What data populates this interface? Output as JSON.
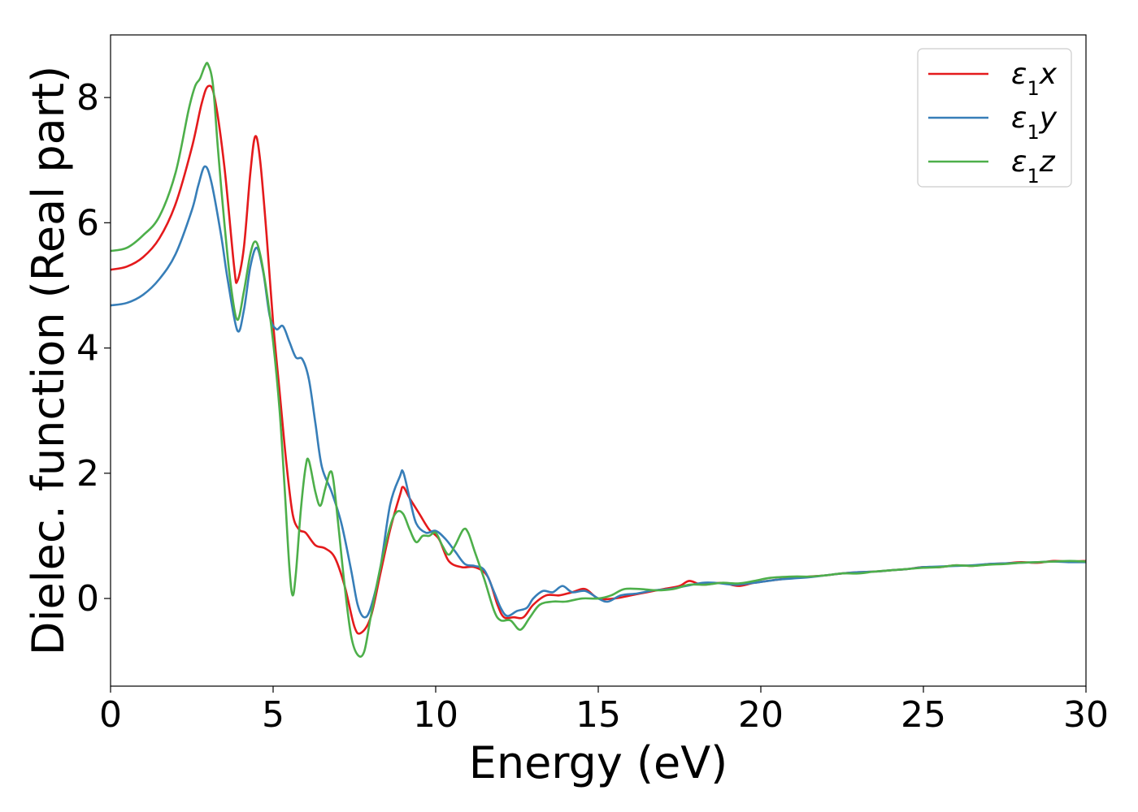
{
  "chart_data": {
    "type": "line",
    "title": "",
    "xlabel": "Energy (eV)",
    "ylabel": "Dielec. function (Real part)",
    "xlim": [
      0,
      30
    ],
    "ylim": [
      -1.4,
      9.0
    ],
    "xticks": [
      0,
      5,
      10,
      15,
      20,
      25,
      30
    ],
    "yticks": [
      0,
      2,
      4,
      6,
      8
    ],
    "grid": false,
    "legend_position": "top-right",
    "series": [
      {
        "name": "ε₁x",
        "legend_base": "ε",
        "legend_sub": "1",
        "legend_var": "x",
        "color": "#e41a1c",
        "points": [
          [
            0,
            5.25
          ],
          [
            0.5,
            5.3
          ],
          [
            1.0,
            5.45
          ],
          [
            1.5,
            5.75
          ],
          [
            2.0,
            6.3
          ],
          [
            2.5,
            7.2
          ],
          [
            2.8,
            7.9
          ],
          [
            3.0,
            8.18
          ],
          [
            3.2,
            8.0
          ],
          [
            3.5,
            6.9
          ],
          [
            3.8,
            5.3
          ],
          [
            3.9,
            5.07
          ],
          [
            4.1,
            5.6
          ],
          [
            4.3,
            6.8
          ],
          [
            4.45,
            7.38
          ],
          [
            4.6,
            7.0
          ],
          [
            4.8,
            5.8
          ],
          [
            5.0,
            4.4
          ],
          [
            5.2,
            3.3
          ],
          [
            5.4,
            2.2
          ],
          [
            5.6,
            1.35
          ],
          [
            5.8,
            1.1
          ],
          [
            6.0,
            1.05
          ],
          [
            6.3,
            0.85
          ],
          [
            6.6,
            0.8
          ],
          [
            6.9,
            0.65
          ],
          [
            7.2,
            0.2
          ],
          [
            7.5,
            -0.45
          ],
          [
            7.7,
            -0.55
          ],
          [
            8.0,
            -0.3
          ],
          [
            8.3,
            0.4
          ],
          [
            8.6,
            1.1
          ],
          [
            8.9,
            1.65
          ],
          [
            9.0,
            1.78
          ],
          [
            9.2,
            1.6
          ],
          [
            9.5,
            1.35
          ],
          [
            9.8,
            1.1
          ],
          [
            10.1,
            0.95
          ],
          [
            10.4,
            0.6
          ],
          [
            10.8,
            0.5
          ],
          [
            11.2,
            0.5
          ],
          [
            11.6,
            0.35
          ],
          [
            11.9,
            -0.1
          ],
          [
            12.1,
            -0.3
          ],
          [
            12.4,
            -0.3
          ],
          [
            12.7,
            -0.3
          ],
          [
            13.0,
            -0.1
          ],
          [
            13.4,
            0.05
          ],
          [
            13.8,
            0.05
          ],
          [
            14.2,
            0.1
          ],
          [
            14.6,
            0.15
          ],
          [
            15.0,
            0.0
          ],
          [
            15.5,
            0.0
          ],
          [
            16.0,
            0.05
          ],
          [
            16.5,
            0.1
          ],
          [
            17.0,
            0.15
          ],
          [
            17.5,
            0.2
          ],
          [
            17.8,
            0.28
          ],
          [
            18.2,
            0.22
          ],
          [
            18.8,
            0.25
          ],
          [
            19.3,
            0.2
          ],
          [
            19.8,
            0.25
          ],
          [
            20.5,
            0.3
          ],
          [
            21.0,
            0.33
          ],
          [
            21.5,
            0.35
          ],
          [
            22.0,
            0.37
          ],
          [
            22.5,
            0.4
          ],
          [
            23.0,
            0.42
          ],
          [
            23.5,
            0.43
          ],
          [
            24.0,
            0.45
          ],
          [
            24.5,
            0.47
          ],
          [
            25.0,
            0.5
          ],
          [
            25.5,
            0.5
          ],
          [
            26.0,
            0.53
          ],
          [
            26.5,
            0.52
          ],
          [
            27.0,
            0.55
          ],
          [
            27.5,
            0.56
          ],
          [
            28.0,
            0.58
          ],
          [
            28.5,
            0.57
          ],
          [
            29.0,
            0.6
          ],
          [
            29.5,
            0.59
          ],
          [
            30.0,
            0.6
          ]
        ]
      },
      {
        "name": "ε₁y",
        "legend_base": "ε",
        "legend_sub": "1",
        "legend_var": "y",
        "color": "#377eb8",
        "points": [
          [
            0,
            4.68
          ],
          [
            0.5,
            4.72
          ],
          [
            1.0,
            4.85
          ],
          [
            1.5,
            5.1
          ],
          [
            2.0,
            5.5
          ],
          [
            2.5,
            6.2
          ],
          [
            2.7,
            6.6
          ],
          [
            2.9,
            6.9
          ],
          [
            3.1,
            6.65
          ],
          [
            3.4,
            5.8
          ],
          [
            3.6,
            5.1
          ],
          [
            3.9,
            4.28
          ],
          [
            4.1,
            4.6
          ],
          [
            4.3,
            5.3
          ],
          [
            4.5,
            5.6
          ],
          [
            4.7,
            5.2
          ],
          [
            4.9,
            4.5
          ],
          [
            5.1,
            4.3
          ],
          [
            5.3,
            4.35
          ],
          [
            5.5,
            4.1
          ],
          [
            5.7,
            3.85
          ],
          [
            5.9,
            3.82
          ],
          [
            6.1,
            3.5
          ],
          [
            6.3,
            2.8
          ],
          [
            6.5,
            2.1
          ],
          [
            6.8,
            1.7
          ],
          [
            7.1,
            1.2
          ],
          [
            7.4,
            0.45
          ],
          [
            7.6,
            -0.1
          ],
          [
            7.8,
            -0.3
          ],
          [
            8.0,
            -0.15
          ],
          [
            8.3,
            0.5
          ],
          [
            8.6,
            1.5
          ],
          [
            8.9,
            1.95
          ],
          [
            9.0,
            2.02
          ],
          [
            9.2,
            1.6
          ],
          [
            9.4,
            1.2
          ],
          [
            9.7,
            1.05
          ],
          [
            10.0,
            1.08
          ],
          [
            10.3,
            0.95
          ],
          [
            10.6,
            0.75
          ],
          [
            10.9,
            0.55
          ],
          [
            11.2,
            0.52
          ],
          [
            11.5,
            0.45
          ],
          [
            11.8,
            0.1
          ],
          [
            12.0,
            -0.15
          ],
          [
            12.2,
            -0.28
          ],
          [
            12.5,
            -0.2
          ],
          [
            12.8,
            -0.15
          ],
          [
            13.0,
            0.0
          ],
          [
            13.3,
            0.12
          ],
          [
            13.6,
            0.1
          ],
          [
            13.9,
            0.2
          ],
          [
            14.2,
            0.1
          ],
          [
            14.6,
            0.12
          ],
          [
            15.0,
            0.0
          ],
          [
            15.3,
            -0.05
          ],
          [
            15.7,
            0.05
          ],
          [
            16.2,
            0.08
          ],
          [
            16.7,
            0.13
          ],
          [
            17.2,
            0.15
          ],
          [
            17.7,
            0.2
          ],
          [
            18.2,
            0.25
          ],
          [
            18.6,
            0.25
          ],
          [
            19.2,
            0.22
          ],
          [
            19.8,
            0.25
          ],
          [
            20.5,
            0.3
          ],
          [
            21.0,
            0.32
          ],
          [
            21.5,
            0.34
          ],
          [
            22.0,
            0.37
          ],
          [
            22.5,
            0.4
          ],
          [
            23.0,
            0.42
          ],
          [
            23.5,
            0.43
          ],
          [
            24.0,
            0.45
          ],
          [
            24.5,
            0.47
          ],
          [
            25.0,
            0.5
          ],
          [
            25.5,
            0.51
          ],
          [
            26.0,
            0.52
          ],
          [
            26.5,
            0.53
          ],
          [
            27.0,
            0.55
          ],
          [
            27.5,
            0.56
          ],
          [
            28.0,
            0.57
          ],
          [
            28.5,
            0.58
          ],
          [
            29.0,
            0.59
          ],
          [
            29.5,
            0.58
          ],
          [
            30.0,
            0.58
          ]
        ]
      },
      {
        "name": "ε₁z",
        "legend_base": "ε",
        "legend_sub": "1",
        "legend_var": "z",
        "color": "#4daf4a",
        "points": [
          [
            0,
            5.55
          ],
          [
            0.5,
            5.6
          ],
          [
            1.0,
            5.8
          ],
          [
            1.5,
            6.1
          ],
          [
            2.0,
            6.8
          ],
          [
            2.4,
            7.8
          ],
          [
            2.6,
            8.18
          ],
          [
            2.75,
            8.3
          ],
          [
            2.9,
            8.5
          ],
          [
            3.0,
            8.53
          ],
          [
            3.15,
            8.2
          ],
          [
            3.3,
            7.2
          ],
          [
            3.5,
            6.0
          ],
          [
            3.7,
            5.0
          ],
          [
            3.9,
            4.45
          ],
          [
            4.1,
            4.9
          ],
          [
            4.3,
            5.5
          ],
          [
            4.45,
            5.7
          ],
          [
            4.6,
            5.5
          ],
          [
            4.8,
            4.9
          ],
          [
            5.0,
            4.1
          ],
          [
            5.2,
            3.0
          ],
          [
            5.35,
            1.8
          ],
          [
            5.5,
            0.5
          ],
          [
            5.6,
            0.05
          ],
          [
            5.7,
            0.4
          ],
          [
            5.85,
            1.4
          ],
          [
            6.0,
            2.1
          ],
          [
            6.1,
            2.2
          ],
          [
            6.3,
            1.7
          ],
          [
            6.45,
            1.48
          ],
          [
            6.6,
            1.75
          ],
          [
            6.75,
            2.02
          ],
          [
            6.85,
            1.9
          ],
          [
            7.0,
            1.2
          ],
          [
            7.2,
            0.2
          ],
          [
            7.4,
            -0.6
          ],
          [
            7.6,
            -0.9
          ],
          [
            7.8,
            -0.85
          ],
          [
            8.0,
            -0.3
          ],
          [
            8.3,
            0.5
          ],
          [
            8.6,
            1.15
          ],
          [
            8.8,
            1.38
          ],
          [
            9.0,
            1.35
          ],
          [
            9.2,
            1.1
          ],
          [
            9.4,
            0.9
          ],
          [
            9.6,
            1.0
          ],
          [
            9.8,
            1.0
          ],
          [
            10.0,
            1.05
          ],
          [
            10.2,
            0.85
          ],
          [
            10.4,
            0.7
          ],
          [
            10.6,
            0.85
          ],
          [
            10.85,
            1.1
          ],
          [
            11.0,
            1.05
          ],
          [
            11.2,
            0.75
          ],
          [
            11.5,
            0.3
          ],
          [
            11.8,
            -0.2
          ],
          [
            12.0,
            -0.35
          ],
          [
            12.3,
            -0.35
          ],
          [
            12.6,
            -0.5
          ],
          [
            12.9,
            -0.3
          ],
          [
            13.2,
            -0.1
          ],
          [
            13.6,
            -0.05
          ],
          [
            14.0,
            -0.05
          ],
          [
            14.5,
            0.0
          ],
          [
            15.0,
            0.0
          ],
          [
            15.4,
            0.05
          ],
          [
            15.8,
            0.15
          ],
          [
            16.3,
            0.15
          ],
          [
            16.8,
            0.13
          ],
          [
            17.3,
            0.15
          ],
          [
            17.8,
            0.22
          ],
          [
            18.3,
            0.22
          ],
          [
            18.8,
            0.25
          ],
          [
            19.3,
            0.24
          ],
          [
            19.8,
            0.28
          ],
          [
            20.3,
            0.33
          ],
          [
            21.0,
            0.35
          ],
          [
            21.5,
            0.35
          ],
          [
            22.0,
            0.37
          ],
          [
            22.5,
            0.4
          ],
          [
            23.0,
            0.4
          ],
          [
            23.5,
            0.43
          ],
          [
            24.0,
            0.45
          ],
          [
            24.5,
            0.47
          ],
          [
            25.0,
            0.49
          ],
          [
            25.5,
            0.5
          ],
          [
            26.0,
            0.53
          ],
          [
            26.5,
            0.52
          ],
          [
            27.0,
            0.54
          ],
          [
            27.5,
            0.55
          ],
          [
            28.0,
            0.57
          ],
          [
            28.5,
            0.58
          ],
          [
            29.0,
            0.59
          ],
          [
            29.5,
            0.6
          ],
          [
            30.0,
            0.59
          ]
        ]
      }
    ]
  }
}
